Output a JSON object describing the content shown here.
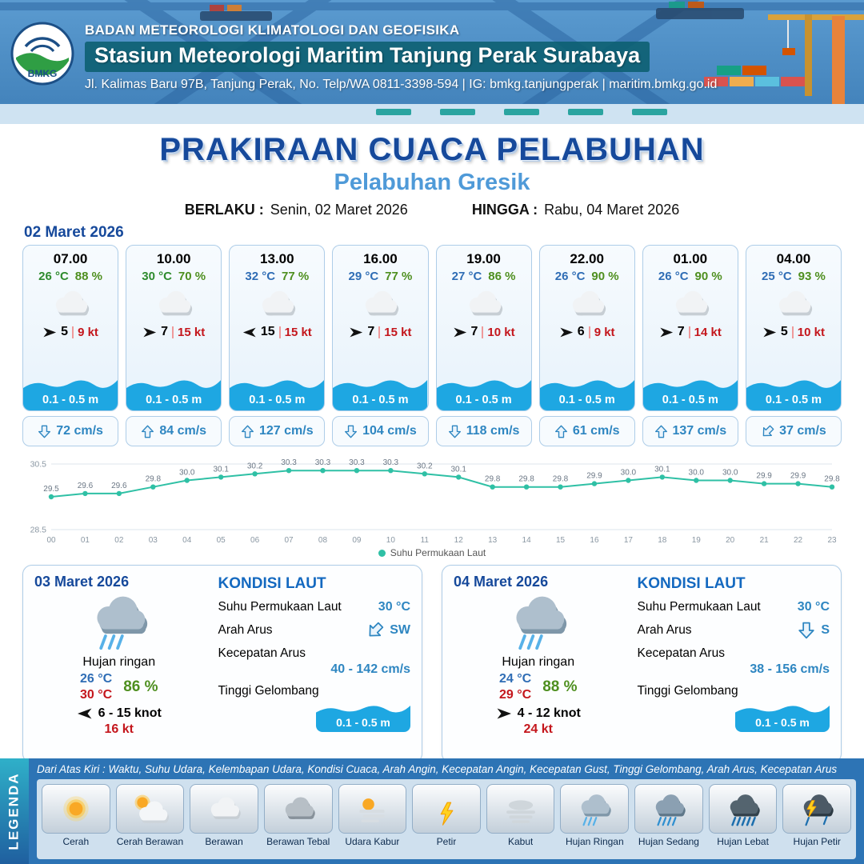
{
  "colors": {
    "accent": "#16499b",
    "subtitle_blue": "#4f9ad8",
    "red": "#c4161c",
    "green": "#4e8f1f",
    "value_blue": "#2e86c1",
    "wave_blue": "#1ea7e2",
    "line_teal": "#2fc0a5",
    "legend_bar": "#2d74b5"
  },
  "header": {
    "logo": "BMKG",
    "org": "BADAN METEOROLOGI KLIMATOLOGI DAN GEOFISIKA",
    "station": "Stasiun Meteorologi Maritim Tanjung Perak Surabaya",
    "address": "Jl. Kalimas Baru 97B, Tanjung Perak, No. Telp/WA 0811-3398-594 | IG: bmkg.tanjungperak | maritim.bmkg.go.id"
  },
  "title": {
    "main": "PRAKIRAAN CUACA PELABUHAN",
    "sub": "Pelabuhan Gresik",
    "berlaku_label": "BERLAKU :",
    "berlaku_value": "Senin, 02 Maret 2026",
    "hingga_label": "HINGGA :",
    "hingga_value": "Rabu, 04 Maret 2026"
  },
  "day1": {
    "date": "02 Maret 2026",
    "cards": [
      {
        "time": "07.00",
        "temp": "26 °C",
        "temp_color": "#2e8b2e",
        "rh": "88 %",
        "icon": "cloud",
        "wind_spd": "5",
        "gust": "9 kt",
        "wind_rot": 0,
        "wave": "0.1 - 0.5 m",
        "current": "72 cm/s",
        "current_rot": 180
      },
      {
        "time": "10.00",
        "temp": "30 °C",
        "temp_color": "#2e8b2e",
        "rh": "70 %",
        "icon": "cloud",
        "wind_spd": "7",
        "gust": "15 kt",
        "wind_rot": 0,
        "wave": "0.1 - 0.5 m",
        "current": "84 cm/s",
        "current_rot": 0
      },
      {
        "time": "13.00",
        "temp": "32 °C",
        "temp_color": "#2f6db5",
        "rh": "77 %",
        "icon": "cloud",
        "wind_spd": "15",
        "gust": "15 kt",
        "wind_rot": 180,
        "wave": "0.1 - 0.5 m",
        "current": "127 cm/s",
        "current_rot": 0
      },
      {
        "time": "16.00",
        "temp": "29 °C",
        "temp_color": "#2f6db5",
        "rh": "77 %",
        "icon": "cloud",
        "wind_spd": "7",
        "gust": "15 kt",
        "wind_rot": 0,
        "wave": "0.1 - 0.5 m",
        "current": "104 cm/s",
        "current_rot": 180
      },
      {
        "time": "19.00",
        "temp": "27 °C",
        "temp_color": "#2f6db5",
        "rh": "86 %",
        "icon": "cloud",
        "wind_spd": "7",
        "gust": "10 kt",
        "wind_rot": 0,
        "wave": "0.1 - 0.5 m",
        "current": "118 cm/s",
        "current_rot": 180
      },
      {
        "time": "22.00",
        "temp": "26 °C",
        "temp_color": "#2f6db5",
        "rh": "90 %",
        "icon": "cloud",
        "wind_spd": "6",
        "gust": "9 kt",
        "wind_rot": 0,
        "wave": "0.1 - 0.5 m",
        "current": "61 cm/s",
        "current_rot": 0
      },
      {
        "time": "01.00",
        "temp": "26 °C",
        "temp_color": "#2f6db5",
        "rh": "90 %",
        "icon": "cloud",
        "wind_spd": "7",
        "gust": "14 kt",
        "wind_rot": 0,
        "wave": "0.1 - 0.5 m",
        "current": "137 cm/s",
        "current_rot": 0
      },
      {
        "time": "04.00",
        "temp": "25 °C",
        "temp_color": "#2f6db5",
        "rh": "93 %",
        "icon": "cloud",
        "wind_spd": "5",
        "gust": "10 kt",
        "wind_rot": 0,
        "wave": "0.1 - 0.5 m",
        "current": "37 cm/s",
        "current_rot": 225
      }
    ]
  },
  "chart_data": {
    "type": "line",
    "title": "",
    "x": [
      "00",
      "01",
      "02",
      "03",
      "04",
      "05",
      "06",
      "07",
      "08",
      "09",
      "10",
      "11",
      "12",
      "13",
      "14",
      "15",
      "16",
      "17",
      "18",
      "19",
      "20",
      "21",
      "22",
      "23"
    ],
    "series": [
      {
        "name": "Suhu Permukaan Laut",
        "values": [
          29.5,
          29.6,
          29.6,
          29.8,
          30.0,
          30.1,
          30.2,
          30.3,
          30.3,
          30.3,
          30.3,
          30.2,
          30.1,
          29.8,
          29.8,
          29.8,
          29.9,
          30.0,
          30.1,
          30.0,
          30.0,
          29.9,
          29.9,
          29.8
        ]
      }
    ],
    "ylim": [
      28.5,
      30.5
    ],
    "yticks": [
      30.5,
      28.5
    ],
    "line_color": "#2fc0a5",
    "legend_position": "bottom",
    "grid": true
  },
  "days": [
    {
      "date": "03 Maret 2026",
      "icon": "rain-light",
      "cond": "Hujan ringan",
      "tmin": "26 °C",
      "tmax": "30 °C",
      "rh": "86 %",
      "wind": "6 - 15 knot",
      "wind_rot": 180,
      "gust": "16 kt",
      "sea": {
        "title": "KONDISI LAUT",
        "sst_label": "Suhu Permukaan Laut",
        "sst": "30 °C",
        "arus_label": "Arah Arus",
        "arus_dir": "SW",
        "arus_rot": 225,
        "kec_label": "Kecepatan Arus",
        "kec": "40 - 142 cm/s",
        "wave_label": "Tinggi Gelombang",
        "wave": "0.1 - 0.5 m"
      }
    },
    {
      "date": "04 Maret 2026",
      "icon": "rain-light",
      "cond": "Hujan ringan",
      "tmin": "24 °C",
      "tmax": "29 °C",
      "rh": "88 %",
      "wind": "4 - 12 knot",
      "wind_rot": 0,
      "gust": "24 kt",
      "sea": {
        "title": "KONDISI LAUT",
        "sst_label": "Suhu Permukaan Laut",
        "sst": "30 °C",
        "arus_label": "Arah Arus",
        "arus_dir": "S",
        "arus_rot": 180,
        "kec_label": "Kecepatan Arus",
        "kec": "38 - 156 cm/s",
        "wave_label": "Tinggi Gelombang",
        "wave": "0.1 - 0.5 m"
      }
    }
  ],
  "legend": {
    "title": "LEGENDA",
    "desc": "Dari Atas Kiri : Waktu, Suhu Udara, Kelembapan Udara, Kondisi Cuaca, Arah Angin, Kecepatan Angin, Kecepatan Gust, Tinggi Gelombang, Arah Arus, Kecepatan Arus",
    "items": [
      {
        "label": "Cerah",
        "icon": "sun"
      },
      {
        "label": "Cerah Berawan",
        "icon": "sun-cloud"
      },
      {
        "label": "Berawan",
        "icon": "cloud"
      },
      {
        "label": "Berawan Tebal",
        "icon": "cloud-dark"
      },
      {
        "label": "Udara Kabur",
        "icon": "haze"
      },
      {
        "label": "Petir",
        "icon": "bolt"
      },
      {
        "label": "Kabut",
        "icon": "fog"
      },
      {
        "label": "Hujan Ringan",
        "icon": "rain-light"
      },
      {
        "label": "Hujan Sedang",
        "icon": "rain-medium"
      },
      {
        "label": "Hujan Lebat",
        "icon": "rain-heavy"
      },
      {
        "label": "Hujan Petir",
        "icon": "storm"
      }
    ]
  }
}
